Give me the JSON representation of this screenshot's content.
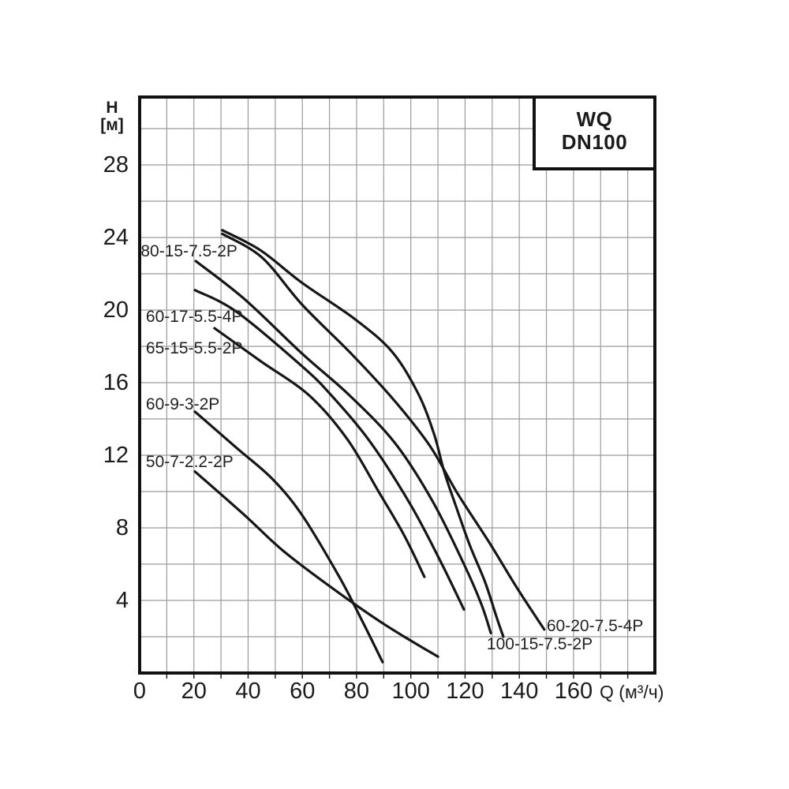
{
  "title_box": {
    "line1": "WQ",
    "line2": "DN100"
  },
  "y_axis": {
    "name": "H",
    "unit": "[м]"
  },
  "x_axis": {
    "label": "Q (м³/ч)"
  },
  "chart_data": {
    "type": "line",
    "title": "WQ DN100",
    "xlabel": "Q (м³/ч)",
    "ylabel": "H [м]",
    "xlim": [
      0,
      190
    ],
    "ylim": [
      0,
      31.74
    ],
    "x_ticks": [
      0,
      20,
      40,
      60,
      80,
      100,
      120,
      140,
      160
    ],
    "y_ticks": [
      4,
      8,
      12,
      16,
      20,
      24,
      28
    ],
    "x_grid_step": 10,
    "y_grid_step": 2,
    "grid": true,
    "legend_position": "curve-end-labels",
    "line_color": "#161616",
    "grid_color": "#9b9b9b",
    "border_color": "#111111",
    "series": [
      {
        "name": "100-15-7.5-2P",
        "points": [
          [
            30.5,
            24.4
          ],
          [
            44.5,
            23.3
          ],
          [
            59.9,
            21.5
          ],
          [
            79.4,
            19.5
          ],
          [
            93.1,
            17.7
          ],
          [
            102.7,
            15.4
          ],
          [
            108.5,
            13.2
          ],
          [
            112.3,
            11.1
          ],
          [
            116.4,
            9.3
          ],
          [
            121.6,
            7.1
          ],
          [
            127.4,
            5.0
          ],
          [
            131.8,
            3.0
          ],
          [
            134.1,
            2.0
          ]
        ],
        "label_pos": [
          128.0,
          1.55
        ]
      },
      {
        "name": "60-20-7.5-4P",
        "points": [
          [
            30.5,
            24.2
          ],
          [
            45.1,
            22.9
          ],
          [
            59.9,
            20.3
          ],
          [
            78.0,
            17.6
          ],
          [
            94.0,
            15.0
          ],
          [
            107.1,
            12.5
          ],
          [
            117.2,
            9.9
          ],
          [
            128.9,
            7.2
          ],
          [
            139.1,
            4.7
          ],
          [
            149.2,
            2.4
          ]
        ],
        "label_pos": [
          150.1,
          2.55
        ]
      },
      {
        "name": "80-15-7.5-2P",
        "points": [
          [
            20.7,
            22.7
          ],
          [
            38.7,
            20.6
          ],
          [
            59.9,
            17.6
          ],
          [
            77.4,
            15.3
          ],
          [
            94.0,
            12.7
          ],
          [
            107.9,
            9.5
          ],
          [
            119.6,
            6.0
          ],
          [
            126.0,
            3.8
          ],
          [
            129.5,
            2.2
          ]
        ],
        "label_pos": [
          0.4,
          23.2
        ]
      },
      {
        "name": "60-17-5.5-4P",
        "points": [
          [
            20.4,
            21.1
          ],
          [
            35.8,
            19.9
          ],
          [
            59.9,
            16.9
          ],
          [
            70.7,
            15.3
          ],
          [
            85.2,
            12.7
          ],
          [
            99.8,
            9.3
          ],
          [
            110.8,
            6.2
          ],
          [
            119.6,
            3.5
          ]
        ],
        "label_pos": [
          2.3,
          19.6
        ]
      },
      {
        "name": "65-15-5.5-2P",
        "points": [
          [
            27.6,
            19.0
          ],
          [
            44.5,
            17.2
          ],
          [
            62.5,
            15.3
          ],
          [
            76.5,
            12.9
          ],
          [
            88.1,
            10.0
          ],
          [
            97.5,
            7.6
          ],
          [
            105.0,
            5.3
          ]
        ],
        "label_pos": [
          2.3,
          17.85
        ]
      },
      {
        "name": "60-9-3-2P",
        "points": [
          [
            20.4,
            14.4
          ],
          [
            35.8,
            12.4
          ],
          [
            48.9,
            10.7
          ],
          [
            59.9,
            8.7
          ],
          [
            73.6,
            5.3
          ],
          [
            82.3,
            2.8
          ],
          [
            89.6,
            0.6
          ]
        ],
        "label_pos": [
          2.3,
          14.8
        ]
      },
      {
        "name": "50-7-2.2-2P",
        "points": [
          [
            20.4,
            11.1
          ],
          [
            38.7,
            8.7
          ],
          [
            53.2,
            6.7
          ],
          [
            73.6,
            4.4
          ],
          [
            91.1,
            2.6
          ],
          [
            110.0,
            0.9
          ]
        ],
        "label_pos": [
          2.3,
          11.6
        ]
      }
    ]
  }
}
